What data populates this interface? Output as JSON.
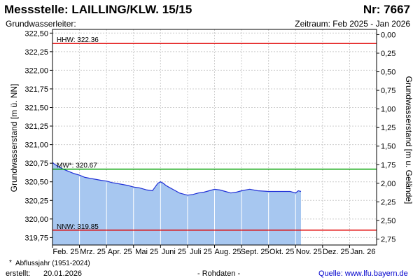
{
  "header": {
    "title": "Messstelle: LAILLING/KLW. 15/15",
    "number": "Nr: 7667",
    "aquifer": "Grundwasserleiter:",
    "period": "Zeitraum: Feb 2025 - Jan 2026"
  },
  "footer": {
    "footnote_star": "*",
    "footnote": "Abflussjahr (1951-2024)",
    "created_label": "erstellt:",
    "created_value": "20.01.2026",
    "raw_data": "- Rohdaten -",
    "source": "Quelle: www.lfu.bayern.de"
  },
  "colors": {
    "fill": "#a7c7f0",
    "line": "#1f2fd6",
    "hhw": "#e00000",
    "nnw": "#e00000",
    "mw": "#00a000",
    "grid": "#cccccc",
    "month_grid": "#ffffff"
  },
  "chart_data": {
    "type": "area",
    "ylabel": "Grundwasserstand [m ü. NN]",
    "ylabel_right": "Grundwasserstand [m u. Gelände]",
    "ylim": [
      319.65,
      322.55
    ],
    "ylim_right": [
      2.83,
      -0.07
    ],
    "yticks": [
      "322,50",
      "322,25",
      "322,00",
      "321,75",
      "321,50",
      "321,25",
      "321,00",
      "320,75",
      "320,50",
      "320,25",
      "320,00",
      "319,75"
    ],
    "yticks_values": [
      322.5,
      322.25,
      322.0,
      321.75,
      321.5,
      321.25,
      321.0,
      320.75,
      320.5,
      320.25,
      320.0,
      319.75
    ],
    "yticks_right": [
      "0,00",
      "0,25",
      "0,50",
      "0,75",
      "1,00",
      "1,25",
      "1,50",
      "1,75",
      "2,00",
      "2,25",
      "2,50",
      "2,75"
    ],
    "yticks_right_values": [
      0.0,
      0.25,
      0.5,
      0.75,
      1.0,
      1.25,
      1.5,
      1.75,
      2.0,
      2.25,
      2.5,
      2.75
    ],
    "xlim": [
      0,
      12
    ],
    "xticks": [
      "Feb. 25",
      "Mrz. 25",
      "Apr. 25",
      "Mai 25",
      "Juni 25",
      "Juli 25",
      "Aug. 25",
      "Sept. 25",
      "Okt. 25",
      "Nov. 25",
      "Dez. 25",
      "Jan. 26"
    ],
    "grid": true,
    "reference_lines": [
      {
        "label": "HHW: 322.36",
        "value": 322.36,
        "color": "#e00000"
      },
      {
        "label": "MW*: 320.67",
        "value": 320.67,
        "color": "#00a000"
      },
      {
        "label": "NNW: 319.85",
        "value": 319.85,
        "color": "#e00000"
      }
    ],
    "series": [
      {
        "x": [
          0.0,
          0.1,
          0.25,
          0.4,
          0.6,
          0.8,
          1.0,
          1.2,
          1.5,
          1.8,
          2.0,
          2.2,
          2.5,
          2.8,
          3.0,
          3.2,
          3.5,
          3.7,
          3.8,
          3.9,
          4.0,
          4.1,
          4.2,
          4.3,
          4.5,
          4.7,
          4.9,
          5.0,
          5.2,
          5.4,
          5.6,
          5.8,
          6.0,
          6.2,
          6.4,
          6.6,
          6.8,
          7.0,
          7.3,
          7.6,
          8.0,
          8.4,
          8.8,
          9.0,
          9.1,
          9.2
        ],
        "values": [
          320.76,
          320.73,
          320.7,
          320.67,
          320.64,
          320.61,
          320.59,
          320.56,
          320.54,
          320.52,
          320.51,
          320.49,
          320.47,
          320.45,
          320.43,
          320.42,
          320.39,
          320.38,
          320.43,
          320.48,
          320.5,
          320.48,
          320.45,
          320.43,
          320.39,
          320.35,
          320.33,
          320.32,
          320.33,
          320.35,
          320.36,
          320.38,
          320.4,
          320.39,
          320.37,
          320.35,
          320.36,
          320.38,
          320.4,
          320.38,
          320.37,
          320.37,
          320.37,
          320.35,
          320.38,
          320.37
        ]
      }
    ]
  }
}
